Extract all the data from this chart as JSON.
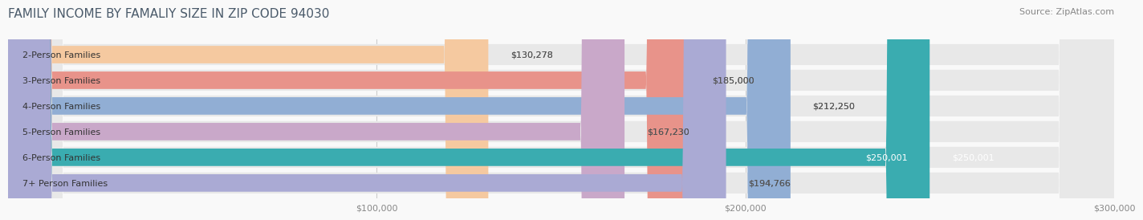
{
  "title": "FAMILY INCOME BY FAMALIY SIZE IN ZIP CODE 94030",
  "source": "Source: ZipAtlas.com",
  "categories": [
    "2-Person Families",
    "3-Person Families",
    "4-Person Families",
    "5-Person Families",
    "6-Person Families",
    "7+ Person Families"
  ],
  "values": [
    130278,
    185000,
    212250,
    167230,
    250001,
    194766
  ],
  "labels": [
    "$130,278",
    "$185,000",
    "$212,250",
    "$167,230",
    "$250,001",
    "$194,766"
  ],
  "bar_colors": [
    "#f5c9a0",
    "#e8938a",
    "#91aed4",
    "#c9a8c9",
    "#3aacb0",
    "#aaaad4"
  ],
  "bar_bg_color": "#eeeeee",
  "label_colors": [
    "#555555",
    "#555555",
    "#555555",
    "#555555",
    "#ffffff",
    "#555555"
  ],
  "xlim": [
    0,
    300000
  ],
  "xticks": [
    100000,
    200000,
    300000
  ],
  "xticklabels": [
    "$100,000",
    "$200,000",
    "$300,000"
  ],
  "background_color": "#f9f9f9",
  "title_color": "#4a5a6a",
  "source_color": "#888888",
  "title_fontsize": 11,
  "source_fontsize": 8,
  "label_fontsize": 8,
  "category_fontsize": 8
}
